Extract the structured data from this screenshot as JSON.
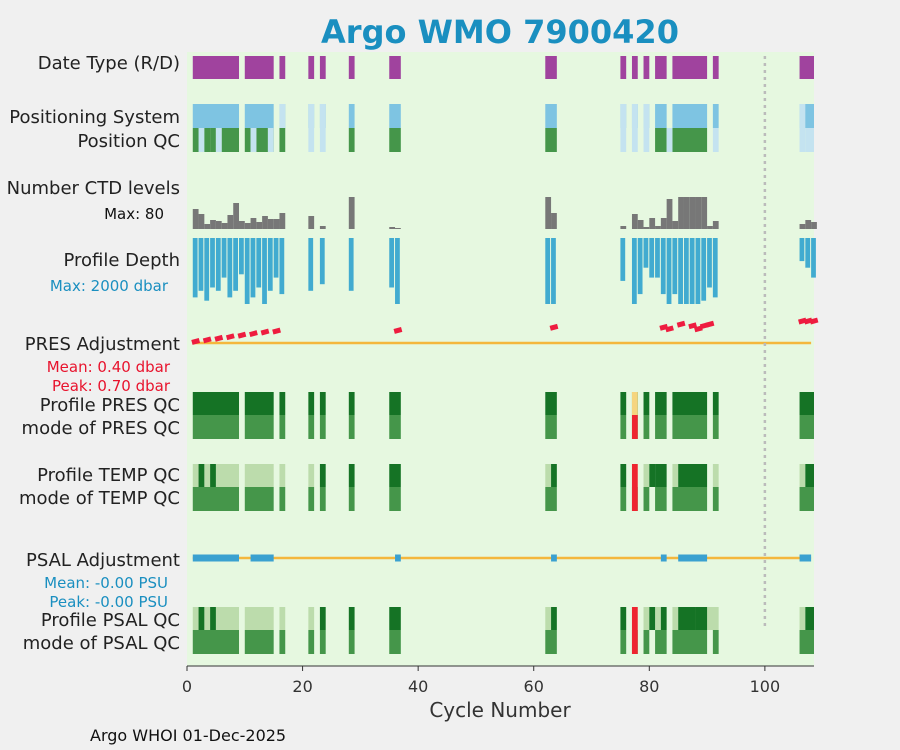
{
  "chart_data": {
    "type": "timeline",
    "title": "Argo WMO 7900420",
    "xlabel": "Cycle Number",
    "xlim": [
      0,
      108.5
    ],
    "xticks": [
      0,
      20,
      40,
      60,
      80,
      100
    ],
    "footer": "Argo WHOI 01-Dec-2025",
    "reference_line_cycle": 100,
    "colors": {
      "plot_bg": "#e6f8e0",
      "date_type": "#a0439e",
      "positioning": "#7ec4e2",
      "positioning_light": "#c4e3f0",
      "qc_good": "#45964a",
      "qc_dark": "#157325",
      "qc_light": "#bcdcac",
      "qc_yellow": "#f5d57f",
      "qc_red": "#ee2530",
      "ctd": "#777777",
      "depth": "#41abd0",
      "adjust_line": "#f4b73d",
      "adjust_pres": "#ee1c3f",
      "adjust_psal": "#3aa1d0",
      "grid": "#bbbbbb"
    },
    "rows": [
      {
        "key": "date_type",
        "label": "Date Type (R/D)"
      },
      {
        "key": "positioning",
        "label": "Positioning System"
      },
      {
        "key": "position_qc",
        "label": "Position QC"
      },
      {
        "key": "ctd_levels",
        "label": "Number CTD levels",
        "sublabel": "Max: 80"
      },
      {
        "key": "profile_depth",
        "label": "Profile Depth",
        "sublabel": "Max: 2000 dbar"
      },
      {
        "key": "pres_adjust",
        "label": "PRES Adjustment",
        "sublabel1": "Mean: 0.40 dbar",
        "sublabel2": "Peak: 0.70 dbar"
      },
      {
        "key": "profile_pres_qc",
        "label": "Profile PRES QC"
      },
      {
        "key": "mode_pres_qc",
        "label": "mode of PRES QC"
      },
      {
        "key": "profile_temp_qc",
        "label": "Profile TEMP QC"
      },
      {
        "key": "mode_temp_qc",
        "label": "mode of TEMP QC"
      },
      {
        "key": "psal_adjust",
        "label": "PSAL Adjustment",
        "sublabel1": "Mean: -0.00 PSU",
        "sublabel2": "Peak: -0.00 PSU"
      },
      {
        "key": "profile_psal_qc",
        "label": "Profile PSAL QC"
      },
      {
        "key": "mode_psal_qc",
        "label": "mode of PSAL QC"
      }
    ],
    "series": {
      "date_type": [
        [
          1,
          9
        ],
        [
          10,
          15
        ],
        [
          16,
          17
        ],
        [
          21,
          22
        ],
        [
          23,
          24
        ],
        [
          28,
          29
        ],
        [
          35,
          37
        ],
        [
          62,
          64
        ],
        [
          75,
          76
        ],
        [
          77,
          78
        ],
        [
          79,
          80
        ],
        [
          81,
          83
        ],
        [
          84,
          90
        ],
        [
          91,
          92
        ],
        [
          106,
          108.5
        ]
      ],
      "positioning": [
        [
          1,
          9
        ],
        [
          10,
          15
        ],
        [
          16,
          17
        ],
        [
          21,
          22
        ],
        [
          23,
          24
        ],
        [
          28,
          29
        ],
        [
          35,
          37
        ],
        [
          62,
          64
        ],
        [
          75,
          76
        ],
        [
          77,
          78
        ],
        [
          79,
          80
        ],
        [
          81,
          83
        ],
        [
          84,
          90
        ],
        [
          91,
          92
        ],
        [
          106,
          108.5
        ]
      ],
      "positioning_light": [
        [
          16,
          17
        ],
        [
          21,
          22
        ],
        [
          23,
          24
        ],
        [
          75,
          76
        ],
        [
          77,
          78
        ],
        [
          79,
          80
        ],
        [
          106,
          107
        ]
      ],
      "position_qc": [
        [
          1,
          2
        ],
        [
          2,
          3
        ],
        [
          3,
          4
        ],
        [
          4,
          5
        ],
        [
          6,
          9
        ],
        [
          10,
          11
        ],
        [
          12,
          14
        ],
        [
          14,
          15
        ],
        [
          16,
          17
        ],
        [
          28,
          29
        ],
        [
          35,
          37
        ],
        [
          62,
          64
        ],
        [
          81,
          83
        ],
        [
          84,
          90
        ]
      ],
      "position_qc_light": [
        [
          2,
          3
        ],
        [
          5,
          6
        ],
        [
          11,
          12
        ],
        [
          14,
          15
        ],
        [
          21,
          22
        ],
        [
          23,
          24
        ],
        [
          75,
          76
        ],
        [
          77,
          78
        ],
        [
          79,
          80
        ],
        [
          83,
          84
        ],
        [
          91,
          92
        ],
        [
          106,
          107
        ],
        [
          107,
          108.5
        ]
      ],
      "ctd_levels": [
        [
          1,
          20
        ],
        [
          2,
          15
        ],
        [
          3,
          5
        ],
        [
          4,
          9
        ],
        [
          5,
          8
        ],
        [
          6,
          6
        ],
        [
          7,
          14
        ],
        [
          8,
          26
        ],
        [
          9,
          8
        ],
        [
          10,
          6
        ],
        [
          11,
          11
        ],
        [
          12,
          7
        ],
        [
          13,
          13
        ],
        [
          14,
          10
        ],
        [
          15,
          10
        ],
        [
          16,
          16
        ],
        [
          21,
          13
        ],
        [
          23,
          3
        ],
        [
          28,
          32
        ],
        [
          35,
          2
        ],
        [
          36,
          1
        ],
        [
          62,
          32
        ],
        [
          63,
          16
        ],
        [
          75,
          3
        ],
        [
          77,
          15
        ],
        [
          78,
          9
        ],
        [
          79,
          2
        ],
        [
          80,
          11
        ],
        [
          81,
          3
        ],
        [
          82,
          11
        ],
        [
          83,
          30
        ],
        [
          84,
          8
        ],
        [
          85,
          32
        ],
        [
          86,
          32
        ],
        [
          87,
          32
        ],
        [
          88,
          32
        ],
        [
          89,
          32
        ],
        [
          90,
          3
        ],
        [
          91,
          8
        ],
        [
          106,
          5
        ],
        [
          107,
          9
        ],
        [
          108,
          7
        ]
      ],
      "profile_depth": [
        [
          1,
          1800
        ],
        [
          2,
          1600
        ],
        [
          3,
          1900
        ],
        [
          4,
          1500
        ],
        [
          5,
          1600
        ],
        [
          6,
          1200
        ],
        [
          7,
          1800
        ],
        [
          8,
          1600
        ],
        [
          9,
          1100
        ],
        [
          10,
          2000
        ],
        [
          11,
          1800
        ],
        [
          12,
          1500
        ],
        [
          13,
          2000
        ],
        [
          14,
          1600
        ],
        [
          15,
          1200
        ],
        [
          16,
          1700
        ],
        [
          21,
          1600
        ],
        [
          23,
          1400
        ],
        [
          28,
          1600
        ],
        [
          35,
          1500
        ],
        [
          36,
          2000
        ],
        [
          62,
          2000
        ],
        [
          63,
          2000
        ],
        [
          75,
          1300
        ],
        [
          77,
          2000
        ],
        [
          78,
          1700
        ],
        [
          79,
          900
        ],
        [
          80,
          1200
        ],
        [
          81,
          1200
        ],
        [
          82,
          1700
        ],
        [
          83,
          2000
        ],
        [
          84,
          1700
        ],
        [
          85,
          2000
        ],
        [
          86,
          2000
        ],
        [
          87,
          2000
        ],
        [
          88,
          2000
        ],
        [
          89,
          1900
        ],
        [
          90,
          1500
        ],
        [
          91,
          1800
        ],
        [
          106,
          700
        ],
        [
          107,
          900
        ],
        [
          108,
          1200
        ]
      ],
      "pres_adjust": [
        [
          1,
          0.05
        ],
        [
          3,
          0.1
        ],
        [
          5,
          0.15
        ],
        [
          7,
          0.2
        ],
        [
          9,
          0.25
        ],
        [
          11,
          0.3
        ],
        [
          13,
          0.35
        ],
        [
          15,
          0.38
        ],
        [
          36,
          0.4
        ],
        [
          63,
          0.5
        ],
        [
          82,
          0.5
        ],
        [
          83,
          0.45
        ],
        [
          85,
          0.6
        ],
        [
          87,
          0.55
        ],
        [
          88,
          0.45
        ],
        [
          89,
          0.55
        ],
        [
          90,
          0.6
        ],
        [
          106,
          0.7
        ],
        [
          107,
          0.7
        ],
        [
          108,
          0.7
        ]
      ],
      "profile_pres_qc": [
        [
          1,
          9
        ],
        [
          10,
          15
        ],
        [
          16,
          17
        ],
        [
          21,
          22
        ],
        [
          23,
          24
        ],
        [
          28,
          29
        ],
        [
          35,
          37
        ],
        [
          62,
          64
        ],
        [
          75,
          76
        ],
        [
          77,
          78
        ],
        [
          79,
          80
        ],
        [
          81,
          83
        ],
        [
          84,
          90
        ],
        [
          91,
          92
        ],
        [
          106,
          108.5
        ]
      ],
      "profile_pres_qc_yellow": [
        [
          77,
          78
        ]
      ],
      "mode_pres_qc": [
        [
          1,
          9
        ],
        [
          10,
          15
        ],
        [
          16,
          17
        ],
        [
          21,
          22
        ],
        [
          23,
          24
        ],
        [
          28,
          29
        ],
        [
          35,
          37
        ],
        [
          62,
          64
        ],
        [
          75,
          76
        ],
        [
          77,
          78
        ],
        [
          79,
          80
        ],
        [
          81,
          83
        ],
        [
          84,
          90
        ],
        [
          91,
          92
        ],
        [
          106,
          108.5
        ]
      ],
      "mode_pres_qc_red": [
        [
          77,
          78
        ]
      ],
      "profile_temp_qc_light": [
        [
          1,
          2
        ],
        [
          3,
          4
        ],
        [
          5,
          9
        ],
        [
          10,
          15
        ],
        [
          16,
          17
        ],
        [
          21,
          22
        ],
        [
          62,
          63
        ],
        [
          79,
          80
        ],
        [
          84,
          85
        ],
        [
          91,
          92
        ],
        [
          106,
          107
        ]
      ],
      "profile_temp_qc_dark": [
        [
          2,
          3
        ],
        [
          4,
          5
        ],
        [
          23,
          24
        ],
        [
          28,
          29
        ],
        [
          35,
          37
        ],
        [
          63,
          64
        ],
        [
          75,
          76
        ],
        [
          80,
          81
        ],
        [
          81,
          83
        ],
        [
          85,
          90
        ],
        [
          107,
          108.5
        ]
      ],
      "profile_temp_qc_red": [
        [
          77,
          78
        ]
      ],
      "mode_temp_qc": [
        [
          1,
          9
        ],
        [
          10,
          15
        ],
        [
          16,
          17
        ],
        [
          21,
          22
        ],
        [
          23,
          24
        ],
        [
          28,
          29
        ],
        [
          35,
          37
        ],
        [
          62,
          64
        ],
        [
          75,
          76
        ],
        [
          77,
          78
        ],
        [
          79,
          80
        ],
        [
          81,
          83
        ],
        [
          84,
          90
        ],
        [
          91,
          92
        ],
        [
          106,
          108.5
        ]
      ],
      "mode_temp_qc_red": [
        [
          77,
          78
        ]
      ],
      "psal_adjust": [
        [
          1,
          9
        ],
        [
          11,
          15
        ],
        [
          36,
          37
        ],
        [
          63,
          64
        ],
        [
          82,
          83
        ],
        [
          85,
          90
        ],
        [
          106,
          108
        ]
      ],
      "profile_psal_qc_light": [
        [
          1,
          2
        ],
        [
          3,
          4
        ],
        [
          5,
          9
        ],
        [
          10,
          15
        ],
        [
          16,
          17
        ],
        [
          21,
          22
        ],
        [
          62,
          63
        ],
        [
          79,
          80
        ],
        [
          81,
          82
        ],
        [
          84,
          85
        ],
        [
          90,
          92
        ],
        [
          106,
          107
        ]
      ],
      "profile_psal_qc_dark": [
        [
          2,
          3
        ],
        [
          4,
          5
        ],
        [
          23,
          24
        ],
        [
          28,
          29
        ],
        [
          35,
          37
        ],
        [
          63,
          64
        ],
        [
          75,
          76
        ],
        [
          80,
          81
        ],
        [
          82,
          83
        ],
        [
          85,
          88
        ],
        [
          88,
          90
        ],
        [
          107,
          108.5
        ]
      ],
      "profile_psal_qc_red": [
        [
          77,
          78
        ]
      ],
      "mode_psal_qc": [
        [
          1,
          9
        ],
        [
          10,
          15
        ],
        [
          16,
          17
        ],
        [
          21,
          22
        ],
        [
          23,
          24
        ],
        [
          28,
          29
        ],
        [
          35,
          37
        ],
        [
          62,
          64
        ],
        [
          75,
          76
        ],
        [
          77,
          78
        ],
        [
          79,
          80
        ],
        [
          81,
          83
        ],
        [
          84,
          90
        ],
        [
          91,
          92
        ],
        [
          106,
          108.5
        ]
      ],
      "mode_psal_qc_red": [
        [
          77,
          78
        ]
      ]
    }
  }
}
